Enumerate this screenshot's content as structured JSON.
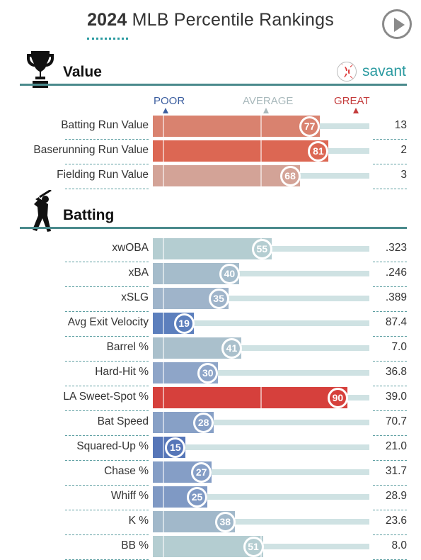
{
  "header": {
    "title_year": "2024",
    "title_rest": "MLB Percentile Rankings"
  },
  "legend": {
    "poor": "POOR",
    "average": "AVERAGE",
    "great": "GREAT"
  },
  "brand": {
    "name": "savant"
  },
  "chart_data": {
    "type": "bar",
    "orientation": "horizontal",
    "xlim": [
      0,
      100
    ],
    "sections": [
      {
        "title": "Value",
        "icon": "trophy-icon",
        "rows": [
          {
            "label": "Batting Run Value",
            "percentile": 77,
            "value": "13",
            "color": "#d9826f"
          },
          {
            "label": "Baserunning Run Value",
            "percentile": 81,
            "value": "2",
            "color": "#dc6753"
          },
          {
            "label": "Fielding Run Value",
            "percentile": 68,
            "value": "3",
            "color": "#d3a397"
          }
        ]
      },
      {
        "title": "Batting",
        "icon": "batter-icon",
        "rows": [
          {
            "label": "xwOBA",
            "percentile": 55,
            "value": ".323",
            "color": "#b4cdd1"
          },
          {
            "label": "xBA",
            "percentile": 40,
            "value": ".246",
            "color": "#a5bccb"
          },
          {
            "label": "xSLG",
            "percentile": 35,
            "value": ".389",
            "color": "#9fb4ca"
          },
          {
            "label": "Avg Exit Velocity",
            "percentile": 19,
            "value": "87.4",
            "color": "#5c7fbd"
          },
          {
            "label": "Barrel %",
            "percentile": 41,
            "value": "7.0",
            "color": "#aac0cc"
          },
          {
            "label": "Hard-Hit %",
            "percentile": 30,
            "value": "36.8",
            "color": "#8ea5c8"
          },
          {
            "label": "LA Sweet-Spot %",
            "percentile": 90,
            "value": "39.0",
            "color": "#d6403c"
          },
          {
            "label": "Bat Speed",
            "percentile": 28,
            "value": "70.7",
            "color": "#87a0c6"
          },
          {
            "label": "Squared-Up %",
            "percentile": 15,
            "value": "21.0",
            "color": "#5676b8"
          },
          {
            "label": "Chase %",
            "percentile": 27,
            "value": "31.7",
            "color": "#859ec6"
          },
          {
            "label": "Whiff %",
            "percentile": 25,
            "value": "28.9",
            "color": "#7f99c4"
          },
          {
            "label": "K %",
            "percentile": 38,
            "value": "23.6",
            "color": "#a1b8ca"
          },
          {
            "label": "BB %",
            "percentile": 51,
            "value": "8.0",
            "color": "#b4cdd1"
          }
        ]
      }
    ]
  }
}
